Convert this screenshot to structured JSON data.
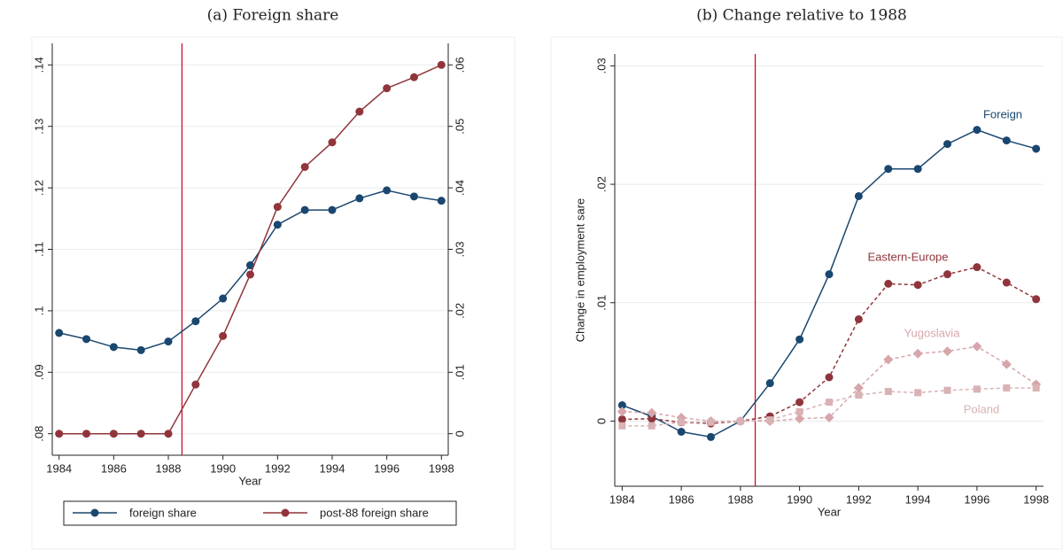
{
  "chart_data": [
    {
      "type": "line",
      "title": "(a) Foreign share",
      "x_label": "Year",
      "x": [
        1984,
        1985,
        1986,
        1987,
        1988,
        1989,
        1990,
        1991,
        1992,
        1993,
        1994,
        1995,
        1996,
        1997,
        1998
      ],
      "xlim": [
        1983.75,
        1998.25
      ],
      "xticks": [
        1984,
        1986,
        1988,
        1990,
        1992,
        1994,
        1996,
        1998
      ],
      "ylim": [
        0.0765,
        0.1435
      ],
      "yticks": [
        {
          "value": 0.08,
          "label": ".08"
        },
        {
          "value": 0.09,
          "label": ".09"
        },
        {
          "value": 0.1,
          "label": ".1"
        },
        {
          "value": 0.11,
          "label": ".11"
        },
        {
          "value": 0.12,
          "label": ".12"
        },
        {
          "value": 0.13,
          "label": ".13"
        },
        {
          "value": 0.14,
          "label": ".14"
        }
      ],
      "y2lim": [
        -0.0035,
        0.0635
      ],
      "y2ticks": [
        0,
        {
          "value": 0.01,
          "label": ".01"
        },
        {
          "value": 0.02,
          "label": ".02"
        },
        {
          "value": 0.03,
          "label": ".03"
        },
        {
          "value": 0.04,
          "label": ".04"
        },
        {
          "value": 0.05,
          "label": ".05"
        },
        {
          "value": 0.06,
          "label": ".06"
        }
      ],
      "grid": true,
      "vline": 1988.5,
      "vline_color": "#c8102e",
      "legend": "bottom",
      "series": [
        {
          "name": "foreign share",
          "color": "#1a476f",
          "marker": "circle",
          "dash": false,
          "values": [
            0.0964,
            0.0954,
            0.0941,
            0.0936,
            0.095,
            0.0983,
            0.102,
            0.1074,
            0.114,
            0.1164,
            0.1164,
            0.1183,
            0.1196,
            0.1186,
            0.1179
          ]
        },
        {
          "name": "post-88 foreign share",
          "color": "#90353b",
          "marker": "circle",
          "dash": false,
          "axis": "y2",
          "values": [
            0,
            0,
            0,
            0,
            0,
            0.008,
            0.0159,
            0.0259,
            0.0369,
            0.0434,
            0.0474,
            0.0524,
            0.0562,
            0.058,
            0.06
          ]
        }
      ]
    },
    {
      "type": "line",
      "title": "(b) Change relative to 1988",
      "x_label": "Year",
      "y_label": "Change in employment sare",
      "x": [
        1984,
        1985,
        1986,
        1987,
        1988,
        1989,
        1990,
        1991,
        1992,
        1993,
        1994,
        1995,
        1996,
        1997,
        1998
      ],
      "xlim": [
        1983.75,
        1998.25
      ],
      "xticks": [
        1984,
        1986,
        1988,
        1990,
        1992,
        1994,
        1996,
        1998
      ],
      "ylim": [
        -0.0055,
        0.031
      ],
      "yticks": [
        0,
        {
          "value": 0.01,
          "label": ".01"
        },
        {
          "value": 0.02,
          "label": ".02"
        },
        {
          "value": 0.03,
          "label": ".03"
        }
      ],
      "grid": true,
      "vline": 1988.5,
      "vline_color": "#c8102e",
      "legend": "inline",
      "series": [
        {
          "name": "Foreign",
          "color": "#1a476f",
          "marker": "circle",
          "dash": false,
          "values": [
            0.00134,
            0.0004,
            -0.0009,
            -0.00134,
            0,
            0.0032,
            0.0069,
            0.0124,
            0.019,
            0.0213,
            0.0213,
            0.0234,
            0.0246,
            0.0237,
            0.023
          ]
        },
        {
          "name": "Eastern-Europe",
          "color": "#90353b",
          "marker": "circle",
          "dash": true,
          "values": [
            0.00015,
            0.0002,
            -0.0001,
            -0.0002,
            0,
            0.0004,
            0.0016,
            0.0037,
            0.0086,
            0.0116,
            0.0115,
            0.0124,
            0.013,
            0.0117,
            0.0103
          ]
        },
        {
          "name": "Yugoslavia",
          "color": "#d6a6aa",
          "marker": "diamond",
          "dash": true,
          "values": [
            0.0008,
            0.0007,
            0.0003,
            0,
            0,
            0,
            0.0002,
            0.0003,
            0.0028,
            0.0052,
            0.0057,
            0.0059,
            0.0063,
            0.0048,
            0.0031
          ]
        },
        {
          "name": "Poland",
          "color": "#d9b2b4",
          "marker": "square",
          "dash": true,
          "values": [
            -0.0004,
            -0.0004,
            -0.0001,
            -0.0001,
            0,
            0.0001,
            0.0008,
            0.0016,
            0.0022,
            0.0025,
            0.0024,
            0.0026,
            0.0027,
            0.0028,
            0.0028
          ]
        }
      ]
    }
  ]
}
